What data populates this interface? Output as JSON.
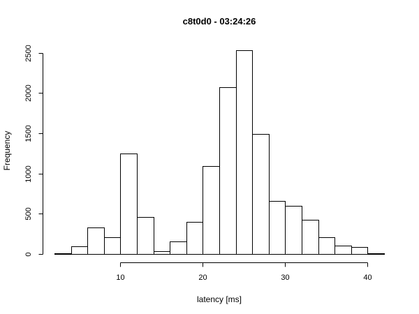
{
  "chart_data": {
    "type": "bar",
    "title": "c8t0d0 - 03:24:26",
    "xlabel": "latency [ms]",
    "ylabel": "Frequency",
    "bin_width": 2,
    "bins": [
      {
        "x0": 2,
        "x1": 4,
        "value": 5
      },
      {
        "x0": 4,
        "x1": 6,
        "value": 95
      },
      {
        "x0": 6,
        "x1": 8,
        "value": 330
      },
      {
        "x0": 8,
        "x1": 10,
        "value": 205
      },
      {
        "x0": 10,
        "x1": 12,
        "value": 1250
      },
      {
        "x0": 12,
        "x1": 14,
        "value": 460
      },
      {
        "x0": 14,
        "x1": 16,
        "value": 35
      },
      {
        "x0": 16,
        "x1": 18,
        "value": 155
      },
      {
        "x0": 18,
        "x1": 20,
        "value": 395
      },
      {
        "x0": 20,
        "x1": 22,
        "value": 1095
      },
      {
        "x0": 22,
        "x1": 24,
        "value": 2075
      },
      {
        "x0": 24,
        "x1": 26,
        "value": 2535
      },
      {
        "x0": 26,
        "x1": 28,
        "value": 1490
      },
      {
        "x0": 28,
        "x1": 30,
        "value": 660
      },
      {
        "x0": 30,
        "x1": 32,
        "value": 595
      },
      {
        "x0": 32,
        "x1": 34,
        "value": 425
      },
      {
        "x0": 34,
        "x1": 36,
        "value": 210
      },
      {
        "x0": 36,
        "x1": 38,
        "value": 105
      },
      {
        "x0": 38,
        "x1": 40,
        "value": 85
      },
      {
        "x0": 40,
        "x1": 42,
        "value": 10
      }
    ],
    "xlim": [
      2,
      42
    ],
    "ylim": [
      0,
      2550
    ],
    "xticks": [
      10,
      20,
      30,
      40
    ],
    "yticks": [
      0,
      500,
      1000,
      1500,
      2000,
      2500
    ],
    "grid": false,
    "legend": "none"
  }
}
